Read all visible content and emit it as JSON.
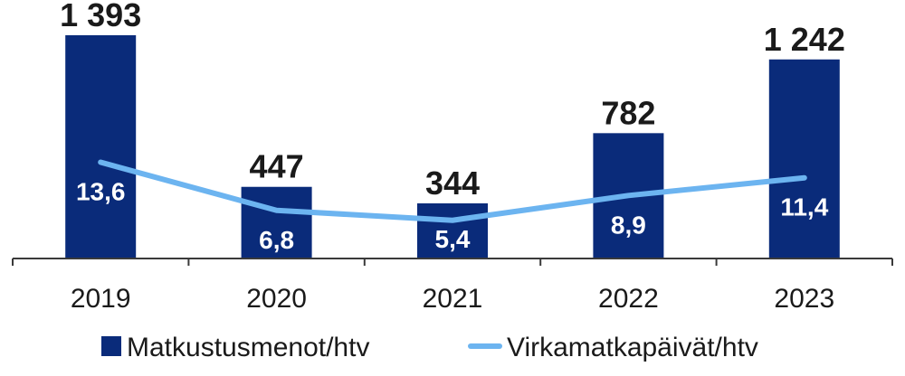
{
  "chart_data": {
    "type": "bar",
    "categories": [
      "2019",
      "2020",
      "2021",
      "2022",
      "2023"
    ],
    "series": [
      {
        "name": "Matkustusmenot/htv",
        "kind": "bar",
        "values": [
          1393,
          447,
          344,
          782,
          1242
        ],
        "labels": [
          "1 393",
          "447",
          "344",
          "782",
          "1 242"
        ],
        "color": "#0a2b7a"
      },
      {
        "name": "Virkamatkapäivät/htv",
        "kind": "line",
        "values": [
          13.6,
          6.8,
          5.4,
          8.9,
          11.4
        ],
        "labels": [
          "13,6",
          "6,8",
          "5,4",
          "8,9",
          "11,4"
        ],
        "color": "#6cb4f0"
      }
    ],
    "title": "",
    "xlabel": "",
    "ylabel": "",
    "bar_ylim": [
      0,
      1500
    ],
    "line_ylim": [
      0,
      40
    ],
    "legend_position": "bottom",
    "grid": false
  }
}
